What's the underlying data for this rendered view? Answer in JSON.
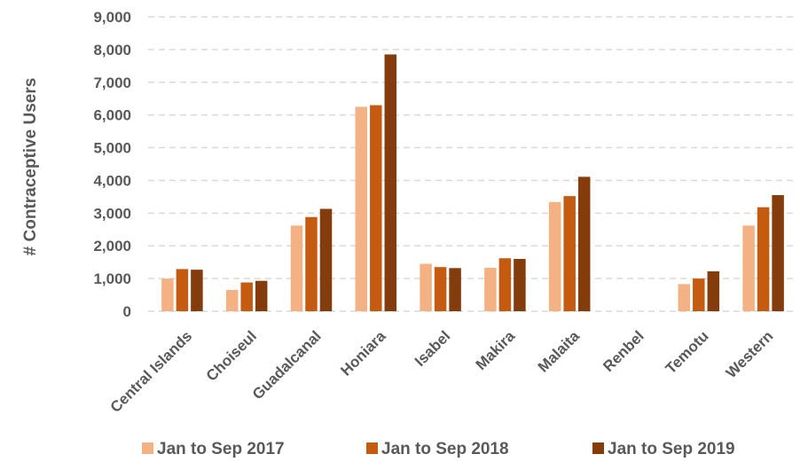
{
  "chart_data": {
    "type": "bar",
    "title": "",
    "xlabel": "",
    "ylabel": "# Contraceptive Users",
    "ylim": [
      0,
      9000
    ],
    "yticks": [
      0,
      1000,
      2000,
      3000,
      4000,
      5000,
      6000,
      7000,
      8000,
      9000
    ],
    "ytick_labels": [
      "0",
      "1,000",
      "2,000",
      "3,000",
      "4,000",
      "5,000",
      "6,000",
      "7,000",
      "8,000",
      "9,000"
    ],
    "grid": true,
    "legend_position": "bottom",
    "categories": [
      "Central Islands",
      "Choiseul",
      "Guadalcanal",
      "Honiara",
      "Isabel",
      "Makira",
      "Malaita",
      "Renbel",
      "Temotu",
      "Western"
    ],
    "series": [
      {
        "name": "Jan to Sep 2017",
        "color": "#f4b183",
        "values": [
          1000,
          650,
          2620,
          6250,
          1450,
          1330,
          3340,
          0,
          830,
          2620
        ]
      },
      {
        "name": "Jan to Sep 2018",
        "color": "#c55a11",
        "values": [
          1290,
          880,
          2880,
          6300,
          1350,
          1620,
          3520,
          0,
          1000,
          3180
        ]
      },
      {
        "name": "Jan to Sep 2019",
        "color": "#843c0c",
        "values": [
          1270,
          930,
          3130,
          7850,
          1320,
          1600,
          4110,
          0,
          1220,
          3550
        ]
      }
    ]
  }
}
